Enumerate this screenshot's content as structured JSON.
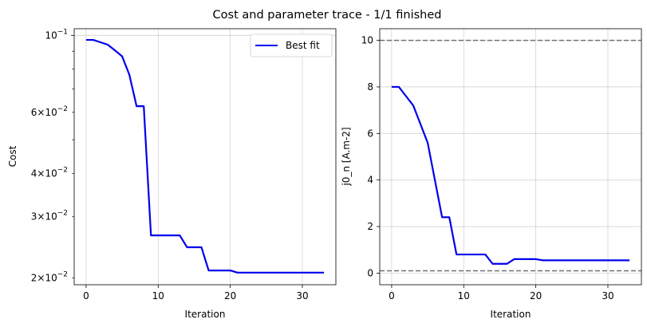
{
  "figure": {
    "title": "Cost and parameter trace - 1/1 finished"
  },
  "chart_data": [
    {
      "type": "line",
      "xlabel": "Iteration",
      "ylabel": "Cost",
      "yscale": "log",
      "xlim": [
        -1.65,
        34.65
      ],
      "ylim": [
        0.0191,
        0.1045
      ],
      "xticks": [
        0,
        10,
        20,
        30
      ],
      "yticks_major": [
        0.1
      ],
      "yticks_minor": [
        0.02,
        0.03,
        0.04,
        0.06
      ],
      "ytick_labels": {
        "0.1": "10^-1",
        "0.02": "2×10^-2",
        "0.03": "3×10^-2",
        "0.04": "4×10^-2",
        "0.06": "6×10^-2"
      },
      "grid": true,
      "legend": {
        "position": "top-right",
        "entries": [
          "Best fit"
        ]
      },
      "series": [
        {
          "name": "Best fit",
          "color": "#0000ee",
          "x": [
            0,
            1,
            2,
            3,
            4,
            5,
            6,
            7,
            8,
            9,
            10,
            11,
            12,
            13,
            14,
            15,
            16,
            17,
            18,
            19,
            20,
            21,
            22,
            23,
            24,
            25,
            26,
            27,
            28,
            29,
            30,
            31,
            32,
            33
          ],
          "y": [
            0.097,
            0.097,
            0.0955,
            0.094,
            0.0905,
            0.087,
            0.077,
            0.0625,
            0.0625,
            0.0265,
            0.0265,
            0.0265,
            0.0265,
            0.0265,
            0.0245,
            0.0245,
            0.0245,
            0.021,
            0.021,
            0.021,
            0.021,
            0.0207,
            0.0207,
            0.0207,
            0.0207,
            0.0207,
            0.0207,
            0.0207,
            0.0207,
            0.0207,
            0.0207,
            0.0207,
            0.0207,
            0.0207
          ]
        }
      ]
    },
    {
      "type": "line",
      "xlabel": "Iteration",
      "ylabel": "j0_n [A.m-2]",
      "yscale": "linear",
      "xlim": [
        -1.65,
        34.65
      ],
      "ylim": [
        -0.5,
        10.5
      ],
      "xticks": [
        0,
        10,
        20,
        30
      ],
      "yticks": [
        0,
        2,
        4,
        6,
        8,
        10
      ],
      "grid": true,
      "bounds": {
        "values": [
          0.1,
          10
        ],
        "color": "#707070",
        "style": "dashed"
      },
      "series": [
        {
          "color": "#0000ee",
          "x": [
            0,
            1,
            2,
            3,
            4,
            5,
            6,
            7,
            8,
            9,
            10,
            11,
            12,
            13,
            14,
            15,
            16,
            17,
            18,
            19,
            20,
            21,
            22,
            23,
            24,
            25,
            26,
            27,
            28,
            29,
            30,
            31,
            32,
            33
          ],
          "y": [
            8.0,
            8.0,
            7.6,
            7.2,
            6.4,
            5.6,
            4.0,
            2.4,
            2.4,
            0.8,
            0.8,
            0.8,
            0.8,
            0.8,
            0.4,
            0.4,
            0.4,
            0.6,
            0.6,
            0.6,
            0.6,
            0.55,
            0.55,
            0.55,
            0.55,
            0.55,
            0.55,
            0.55,
            0.55,
            0.55,
            0.55,
            0.55,
            0.55,
            0.55
          ]
        }
      ]
    }
  ]
}
